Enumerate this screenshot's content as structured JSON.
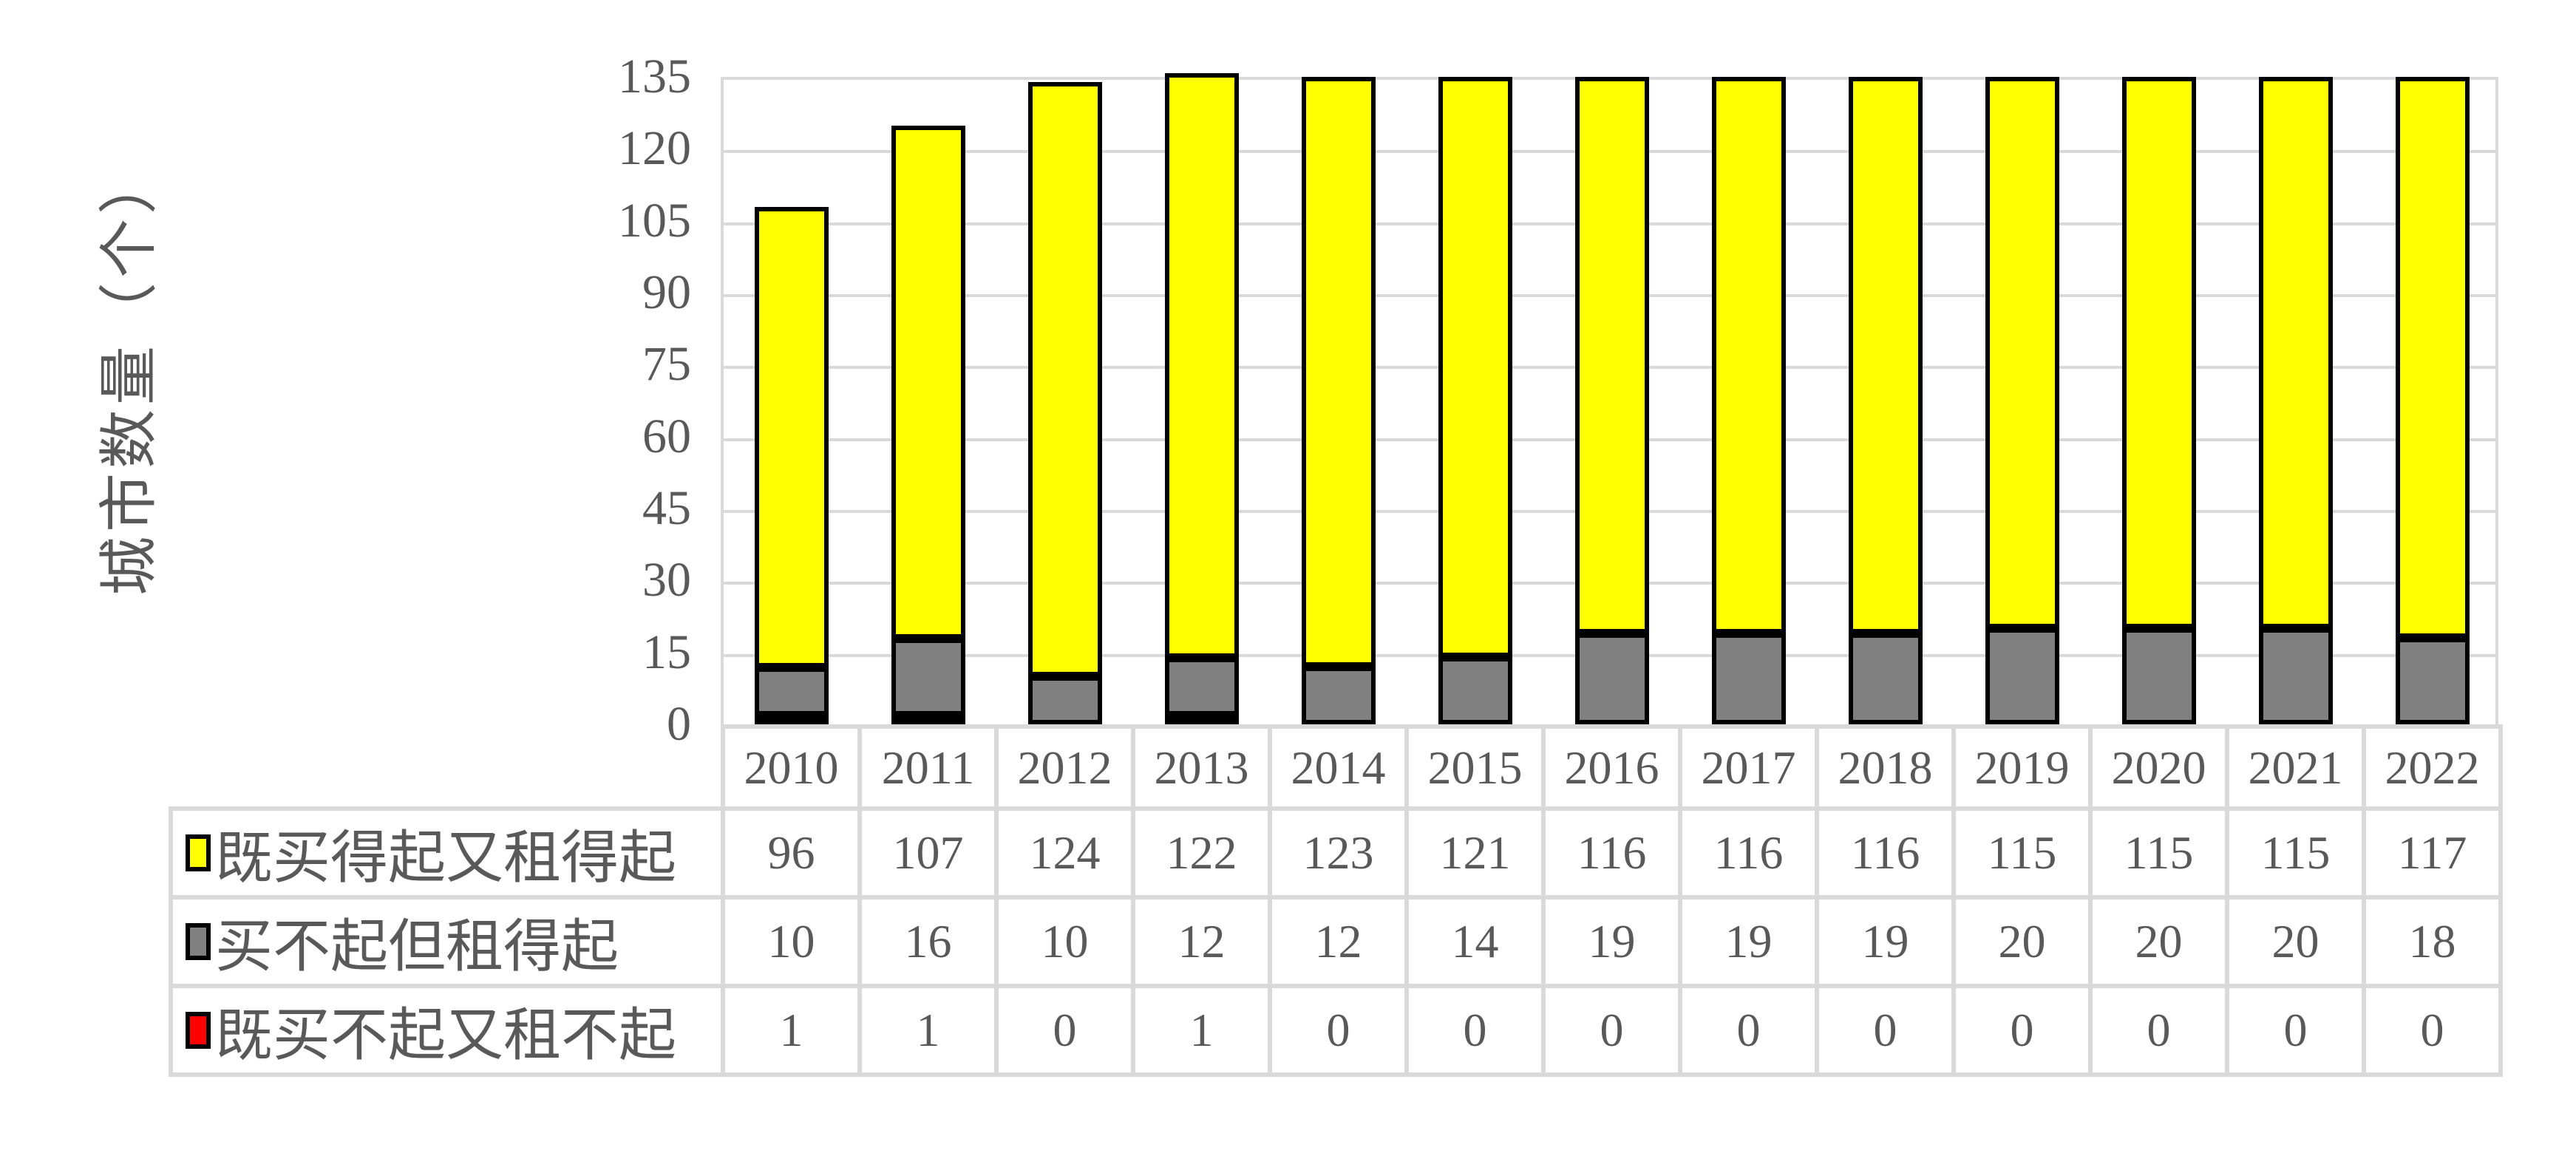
{
  "chart_data": {
    "type": "bar",
    "stacked": true,
    "categories": [
      "2010",
      "2011",
      "2012",
      "2013",
      "2014",
      "2015",
      "2016",
      "2017",
      "2018",
      "2019",
      "2020",
      "2021",
      "2022"
    ],
    "series": [
      {
        "key": "afford-buy-and-rent",
        "name": "既买得起又租得起",
        "color": "#ffff00",
        "values": [
          96,
          107,
          124,
          122,
          123,
          121,
          116,
          116,
          116,
          115,
          115,
          115,
          117
        ]
      },
      {
        "key": "rent-only",
        "name": "买不起但租得起",
        "color": "#808080",
        "values": [
          10,
          16,
          10,
          12,
          12,
          14,
          19,
          19,
          19,
          20,
          20,
          20,
          18
        ]
      },
      {
        "key": "neither",
        "name": "既买不起又租不起",
        "color": "#ff0000",
        "values": [
          1,
          1,
          0,
          1,
          0,
          0,
          0,
          0,
          0,
          0,
          0,
          0,
          0
        ]
      }
    ],
    "stack_order_bottom_to_top": [
      "neither",
      "rent-only",
      "afford-buy-and-rent"
    ],
    "ylabel": "城市数量（个）",
    "ylim": [
      0,
      135
    ],
    "yticks": [
      0,
      15,
      30,
      45,
      60,
      75,
      90,
      105,
      120,
      135
    ],
    "grid": true,
    "legend_position": "table-left",
    "colors": {
      "bar_border": "#000000",
      "grid": "#d9d9d9",
      "text": "#595959",
      "background": "#ffffff"
    }
  }
}
